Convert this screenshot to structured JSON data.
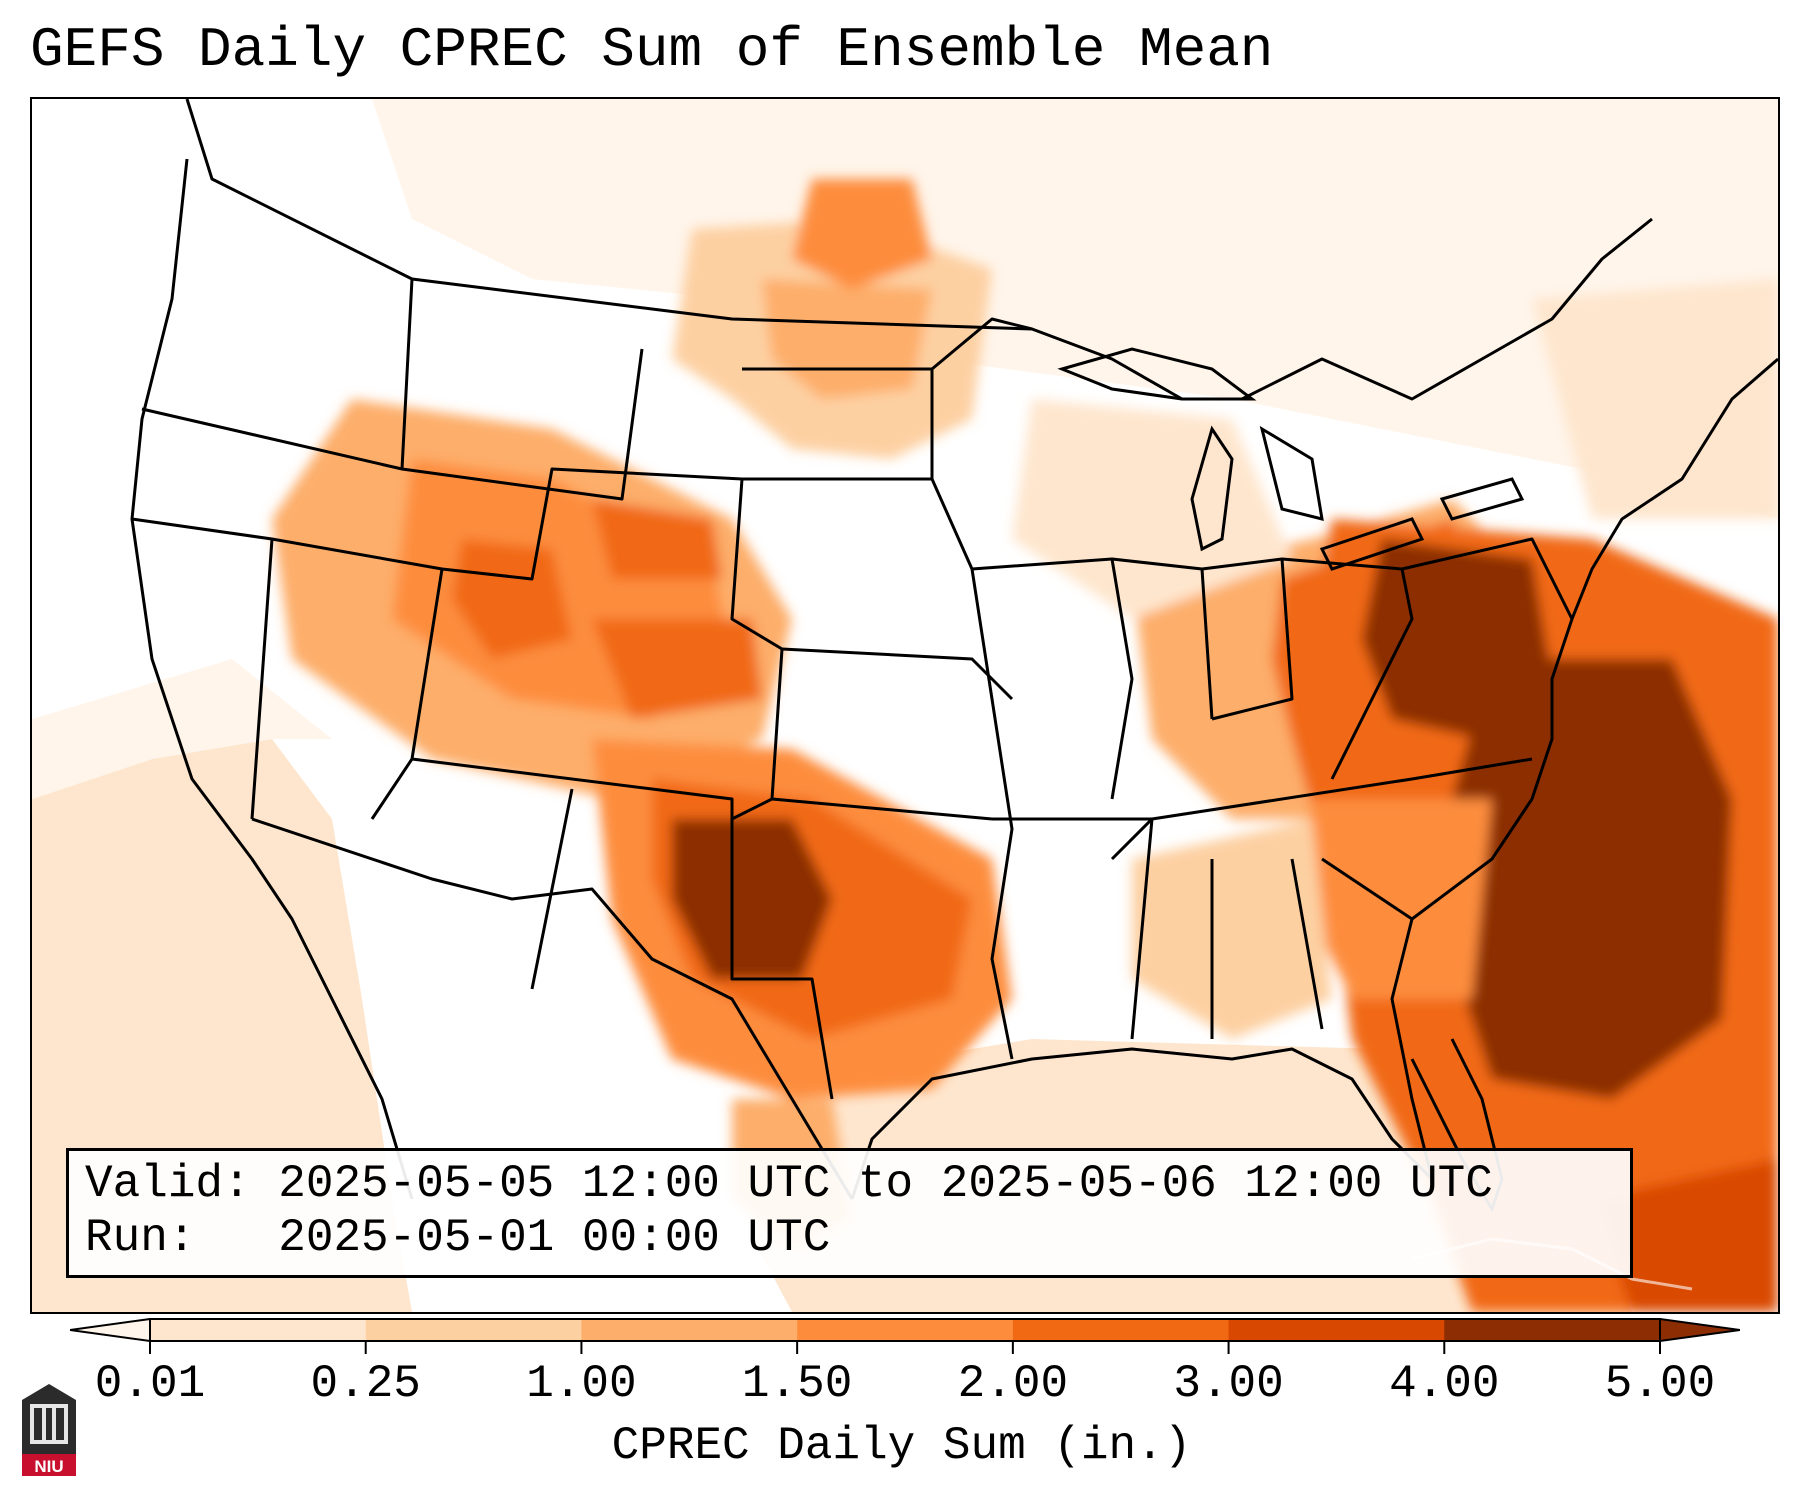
{
  "title": "GEFS Daily CPREC Sum of Ensemble Mean",
  "info": {
    "valid_line": "Valid: 2025-05-05 12:00 UTC to 2025-05-06 12:00 UTC",
    "run_line": "Run:   2025-05-01 00:00 UTC"
  },
  "colorbar": {
    "label": "CPREC Daily Sum (in.)",
    "ticks": [
      "0.01",
      "0.25",
      "1.00",
      "1.50",
      "2.00",
      "3.00",
      "4.00",
      "5.00"
    ],
    "colors": [
      "#fff5eb",
      "#fee6ce",
      "#fdd0a2",
      "#fdae6b",
      "#fd8d3c",
      "#f16913",
      "#d94801",
      "#8c2d04"
    ]
  },
  "logo_text": "NIU"
}
